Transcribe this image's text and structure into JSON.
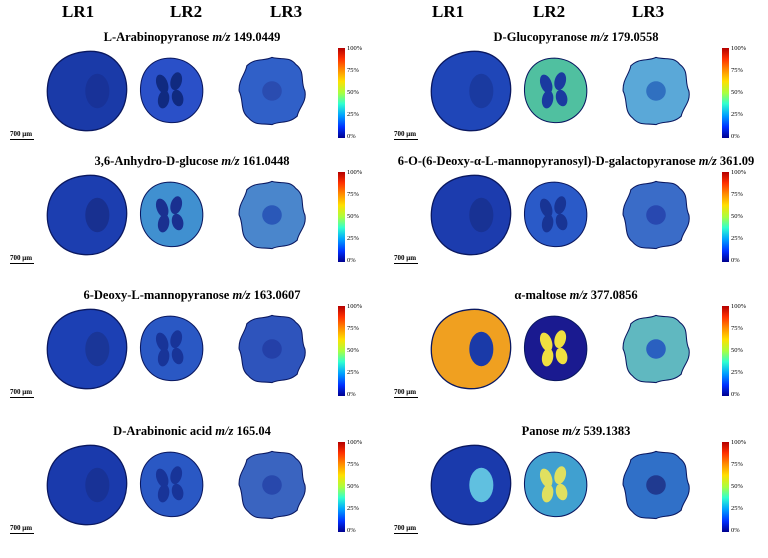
{
  "columns": [
    "LR1",
    "LR2",
    "LR3"
  ],
  "scale_label": "700 μm",
  "ticks": [
    "100%",
    "75%",
    "50%",
    "25%",
    "0%"
  ],
  "panels": [
    {
      "name": "L-Arabinopyranose",
      "mz_label": "m/z",
      "mz": "149.0449"
    },
    {
      "name": "D-Glucopyranose",
      "mz_label": "m/z",
      "mz": "179.0558"
    },
    {
      "name": "3,6-Anhydro-D-glucose",
      "mz_label": "m/z",
      "mz": "161.0448"
    },
    {
      "name": "6-O-(6-Deoxy-α-L-mannopyranosyl)-D-galactopyranose",
      "mz_label": "m/z",
      "mz": "361.09"
    },
    {
      "name": "6-Deoxy-L-mannopyranose",
      "mz_label": "m/z",
      "mz": "163.0607"
    },
    {
      "name": "α-maltose",
      "mz_label": "m/z",
      "mz": "377.0856"
    },
    {
      "name": "D-Arabinonic acid",
      "mz_label": "m/z",
      "mz": "165.04"
    },
    {
      "name": "Panose ",
      "mz_label": "m/z",
      "mz": "539.1383"
    }
  ]
}
